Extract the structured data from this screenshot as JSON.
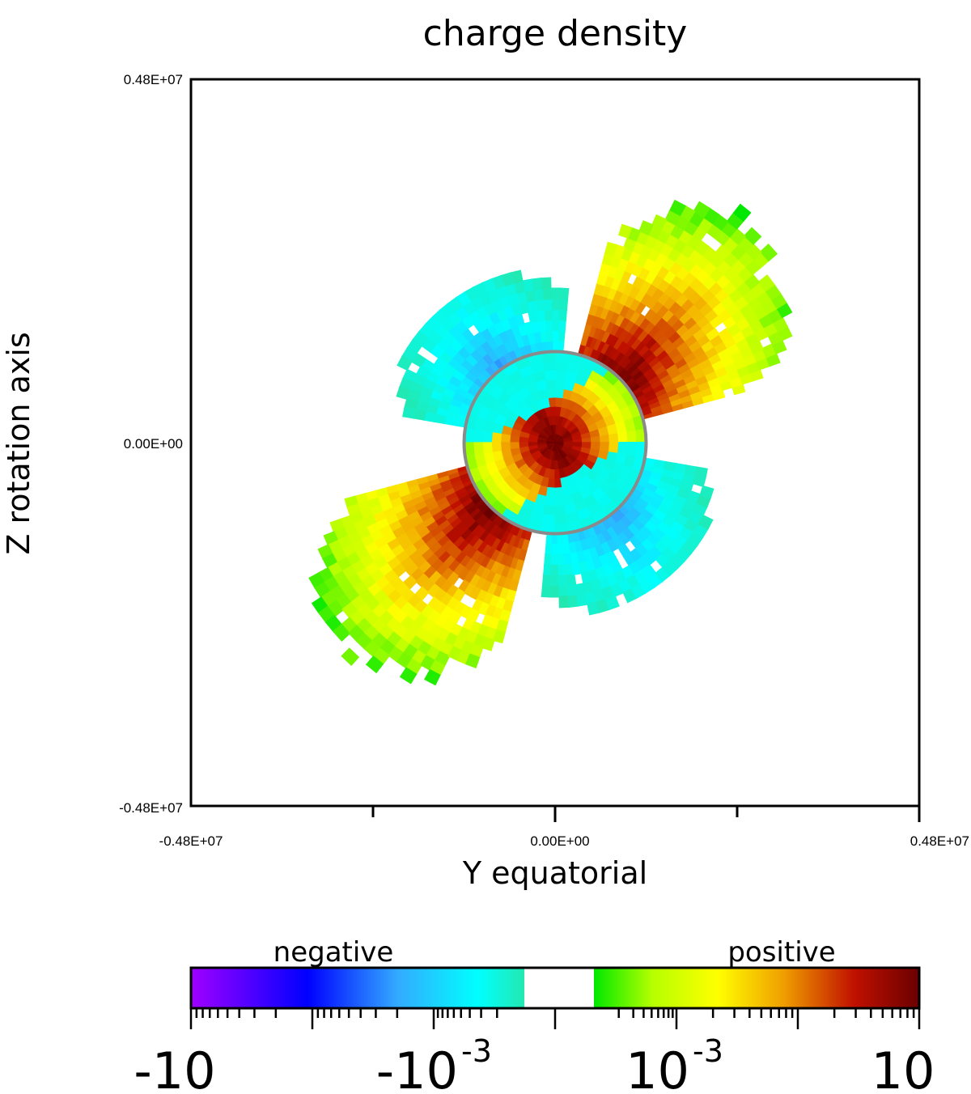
{
  "chart_data": {
    "type": "heatmap",
    "title": "charge density",
    "xlabel": "Y equatorial",
    "ylabel": "Z rotation axis",
    "xlim": [
      -4800000,
      4800000
    ],
    "ylim": [
      -4800000,
      4800000
    ],
    "x_tick_labels": [
      "-0.48E+07",
      "0.00E+00",
      "0.48E+07"
    ],
    "y_tick_labels": [
      "0.48E+07",
      "0.00E+00",
      "-0.48E+07"
    ],
    "star_radius": 1200000,
    "field_inclination_deg": 30,
    "grid": false,
    "colorbar": {
      "negative_label": "negative",
      "positive_label": "positive",
      "tick_labels": {
        "neg_max": "-10",
        "neg_min_base": "-10",
        "neg_min_exp": "-3",
        "pos_min_base": "10",
        "pos_min_exp": "-3",
        "pos_max": "10"
      },
      "negative_colors": [
        "#a000ff",
        "#0000ff",
        "#33aaff",
        "#00ffff",
        "#22e8b0"
      ],
      "positive_colors": [
        "#00e800",
        "#b6ff00",
        "#ffff00",
        "#f0a000",
        "#c01000",
        "#6a0000"
      ]
    },
    "regions": [
      {
        "name": "positive-lobe-upper-right",
        "sign": "positive",
        "polar_angle_range_deg": [
          15,
          75
        ],
        "radial_range": [
          1200000,
          3800000
        ],
        "peak_log10_density": 1.0
      },
      {
        "name": "positive-lobe-lower-left",
        "sign": "positive",
        "polar_angle_range_deg": [
          195,
          255
        ],
        "radial_range": [
          1200000,
          3800000
        ],
        "peak_log10_density": 1.0
      },
      {
        "name": "negative-cap-upper-left",
        "sign": "negative",
        "polar_angle_range_deg": [
          85,
          170
        ],
        "radial_range": [
          1200000,
          2300000
        ],
        "peak_log10_density": -1.0
      },
      {
        "name": "negative-cap-lower-right",
        "sign": "negative",
        "polar_angle_range_deg": [
          265,
          350
        ],
        "radial_range": [
          1200000,
          2300000
        ],
        "peak_log10_density": -1.0
      }
    ]
  }
}
